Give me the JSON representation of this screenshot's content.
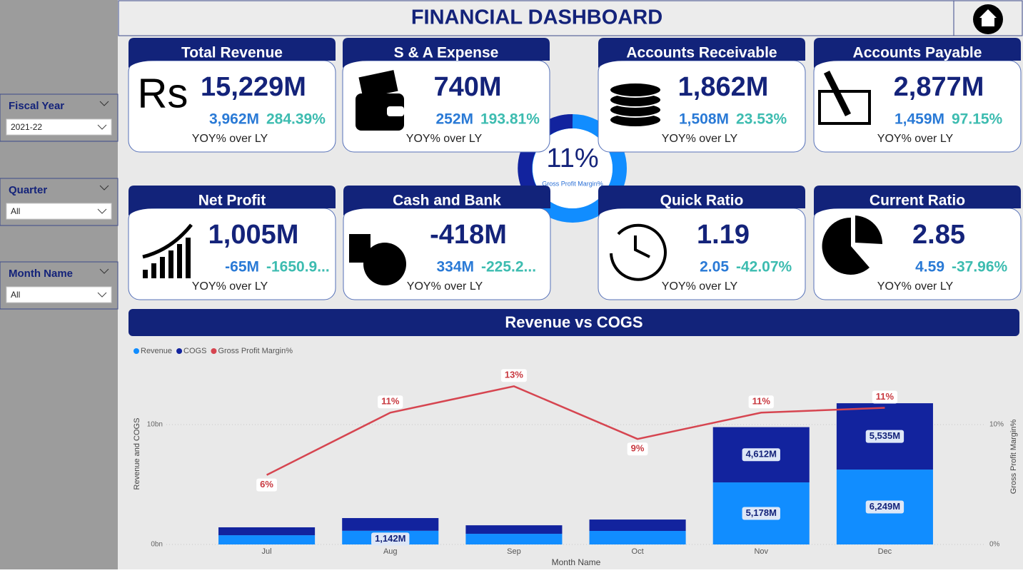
{
  "header": {
    "title": "FINANCIAL DASHBOARD"
  },
  "filters": [
    {
      "label": "Fiscal Year",
      "value": "2021-22"
    },
    {
      "label": "Quarter",
      "value": "All"
    },
    {
      "label": "Month Name",
      "value": "All"
    }
  ],
  "kpis": [
    {
      "title": "Total Revenue",
      "icon_text": "Rs",
      "value": "15,229M",
      "ly": "3,962M",
      "yoy": "284.39%",
      "note": "YOY% over LY"
    },
    {
      "title": "S & A Expense",
      "value": "740M",
      "ly": "252M",
      "yoy": "193.81%",
      "note": "YOY% over LY"
    },
    {
      "title": "Accounts Receivable",
      "value": "1,862M",
      "ly": "1,508M",
      "yoy": "23.53%",
      "note": "YOY% over LY"
    },
    {
      "title": "Accounts Payable",
      "value": "2,877M",
      "ly": "1,459M",
      "yoy": "97.15%",
      "note": "YOY% over LY"
    },
    {
      "title": "Net Profit",
      "value": "1,005M",
      "ly": "-65M",
      "yoy": "-1650.9...",
      "note": "YOY% over LY"
    },
    {
      "title": "Cash and Bank",
      "value": "-418M",
      "ly": "334M",
      "yoy": "-225.2...",
      "note": "YOY% over LY"
    },
    {
      "title": "Quick Ratio",
      "value": "1.19",
      "ly": "2.05",
      "yoy": "-42.07%",
      "note": "YOY% over LY"
    },
    {
      "title": "Current Ratio",
      "value": "2.85",
      "ly": "4.59",
      "yoy": "-37.96%",
      "note": "YOY% over LY"
    }
  ],
  "donut": {
    "value": "11%",
    "label": "Gross Profit Margin%"
  },
  "chart_data": {
    "type": "bar",
    "title": "Revenue vs COGS",
    "stacked": true,
    "categories": [
      "Jul",
      "Aug",
      "Sep",
      "Oct",
      "Nov",
      "Dec"
    ],
    "series": [
      {
        "name": "Revenue",
        "color": "#118dff",
        "values": [
          0.77,
          1.142,
          0.89,
          1.13,
          5.178,
          6.249
        ],
        "value_labels": [
          null,
          "1,142M",
          null,
          null,
          "5,178M",
          "6,249M"
        ]
      },
      {
        "name": "COGS",
        "color": "#12239e",
        "values": [
          0.66,
          1.06,
          0.71,
          0.95,
          4.612,
          5.535
        ],
        "value_labels": [
          null,
          null,
          null,
          null,
          "4,612M",
          "5,535M"
        ]
      },
      {
        "name": "Gross Profit Margin%",
        "color": "#d64550",
        "type": "line",
        "axis": "y2",
        "values": [
          5.8,
          11,
          13.2,
          8.8,
          11,
          11.4
        ],
        "value_labels": [
          "6%",
          "11%",
          "13%",
          "9%",
          "11%",
          "11%"
        ]
      }
    ],
    "ylim": [
      0,
      15.6
    ],
    "yticks": [
      {
        "value": 0,
        "label": "0bn"
      },
      {
        "value": 10,
        "label": "10bn"
      }
    ],
    "y2lim": [
      0,
      15.6
    ],
    "y2ticks": [
      {
        "value": 0,
        "label": "0%"
      },
      {
        "value": 10,
        "label": "10%"
      }
    ],
    "ylabel": "Revenue and COGS",
    "y2label": "Gross Profit Margin%",
    "xlabel": "Month Name",
    "grid": true,
    "legend": "top-left"
  }
}
